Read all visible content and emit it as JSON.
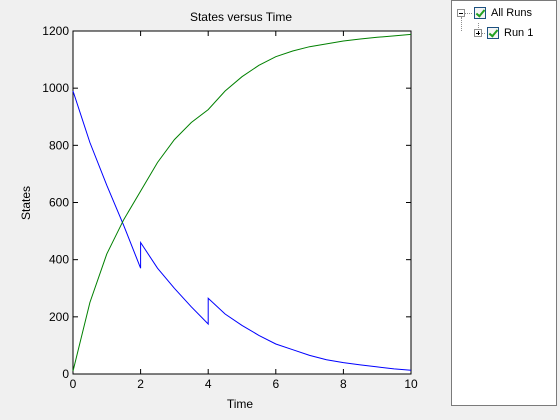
{
  "chart_data": {
    "type": "line",
    "title": "States versus Time",
    "xlabel": "Time",
    "ylabel": "States",
    "xlim": [
      0,
      10
    ],
    "ylim": [
      0,
      1200
    ],
    "xticks": [
      0,
      2,
      4,
      6,
      8,
      10
    ],
    "yticks": [
      0,
      200,
      400,
      600,
      800,
      1000,
      1200
    ],
    "grid": false,
    "series": [
      {
        "color": "#0000ff",
        "x": [
          0,
          0.5,
          1,
          1.5,
          2,
          2,
          2.5,
          3,
          3.5,
          4,
          4,
          4.5,
          5,
          5.5,
          6,
          6.5,
          7,
          7.5,
          8,
          8.5,
          9,
          9.5,
          10
        ],
        "y": [
          990,
          810,
          660,
          520,
          370,
          460,
          370,
          300,
          235,
          175,
          265,
          210,
          170,
          135,
          105,
          85,
          65,
          50,
          40,
          32,
          25,
          18,
          13
        ]
      },
      {
        "color": "#008000",
        "x": [
          0,
          0.5,
          1,
          1.5,
          2,
          2.5,
          3,
          3.5,
          4,
          4.5,
          5,
          5.5,
          6,
          6.5,
          7,
          7.5,
          8,
          8.5,
          9,
          9.5,
          10
        ],
        "y": [
          10,
          250,
          420,
          540,
          640,
          740,
          820,
          880,
          925,
          990,
          1040,
          1080,
          1110,
          1130,
          1145,
          1155,
          1165,
          1172,
          1178,
          1183,
          1188
        ]
      }
    ]
  },
  "tree": {
    "root_label": "All Runs",
    "child_label": "Run 1"
  }
}
